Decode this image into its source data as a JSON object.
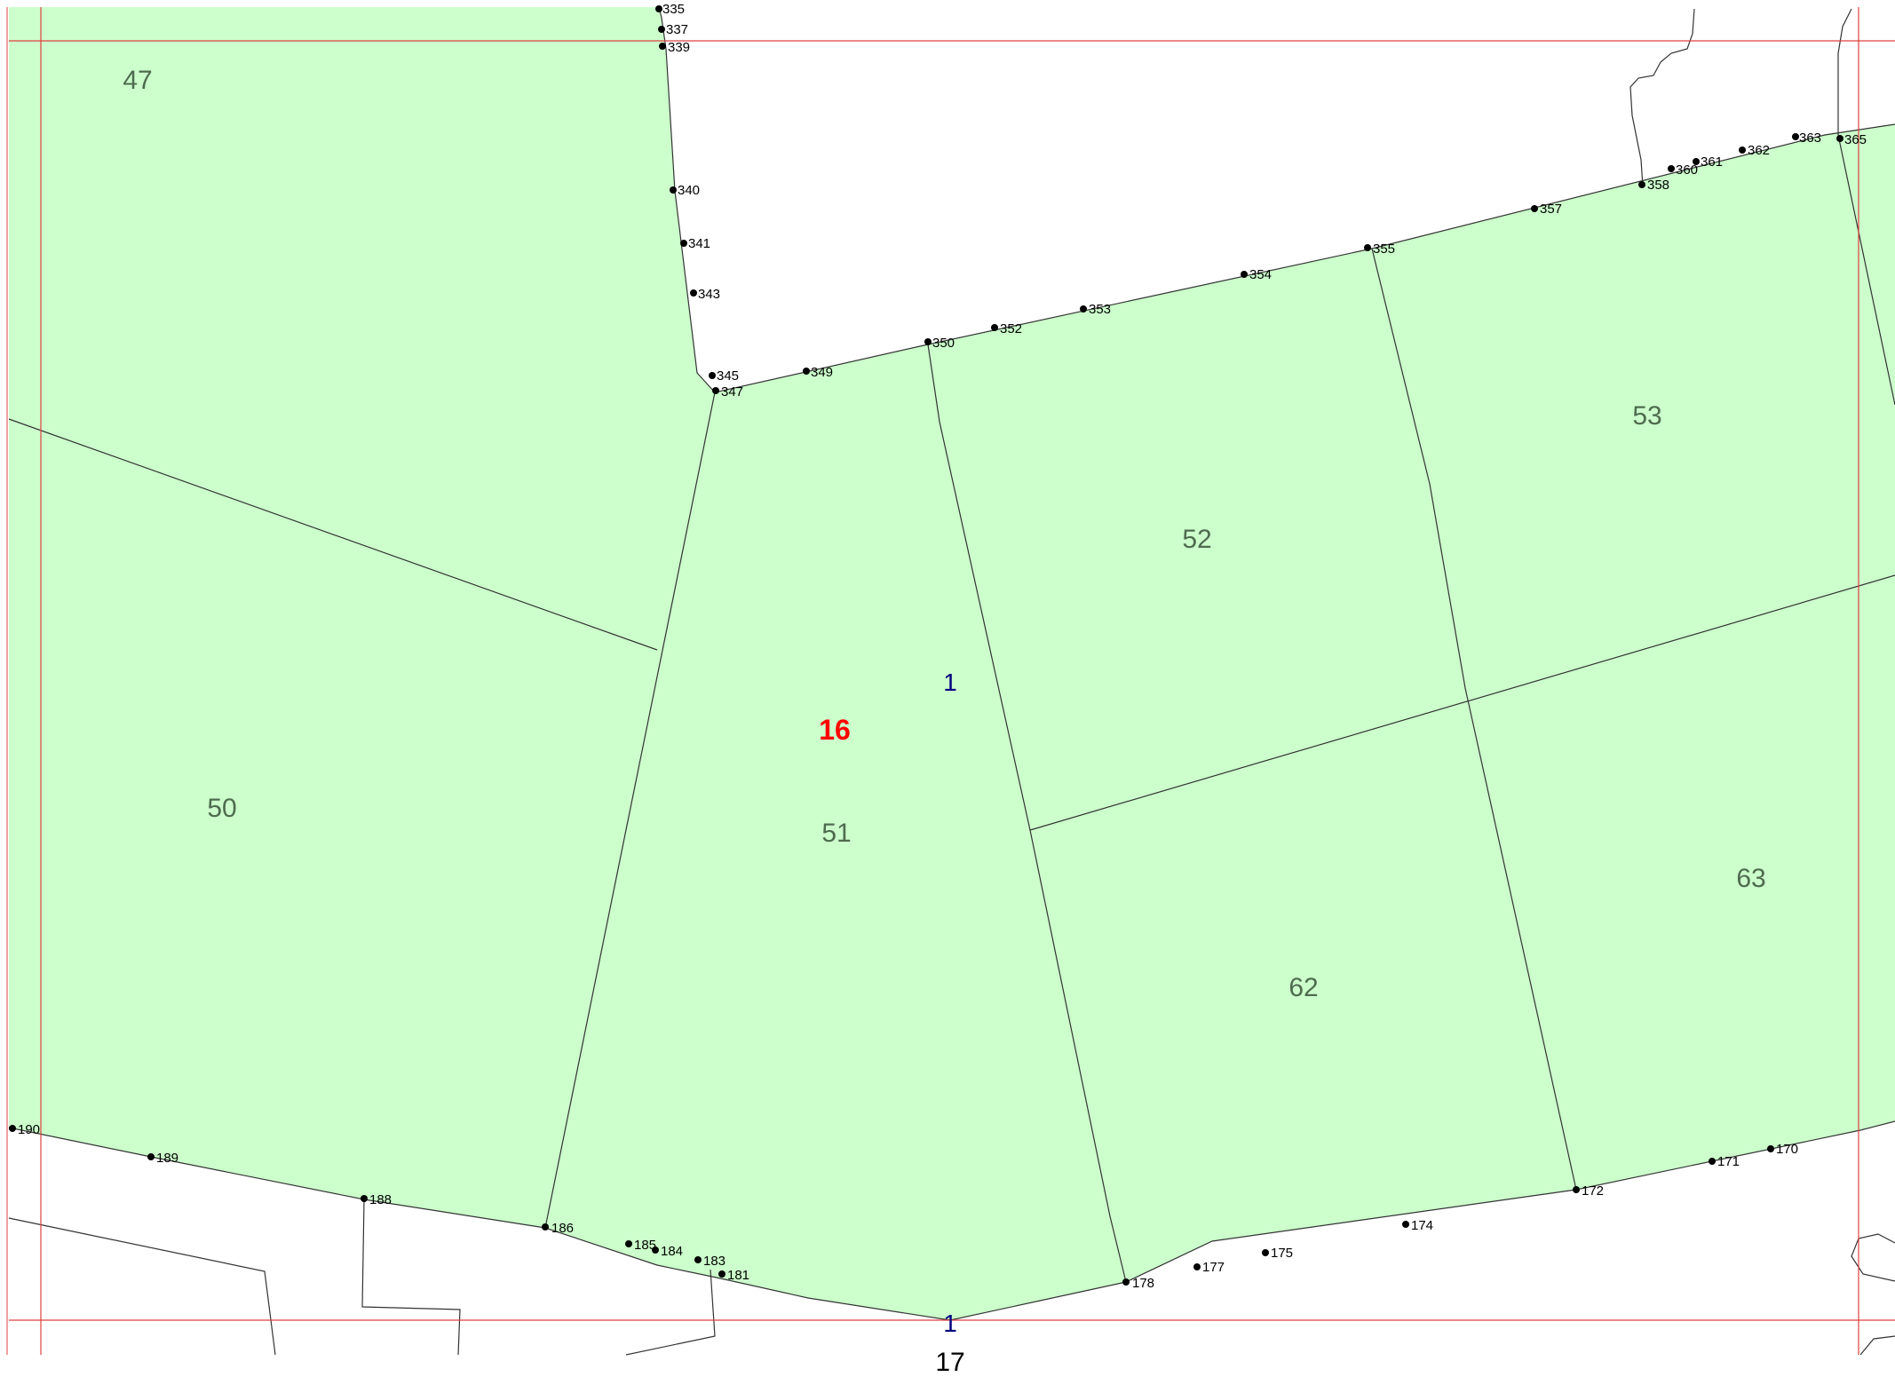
{
  "map": {
    "colors": {
      "parcel_fill": "#ccffcc",
      "grid": "#e04040",
      "block_label": "#ff0000",
      "sheet_label": "#000080",
      "parcel_label": "#4f6b4f"
    },
    "block_number": "16",
    "sheet_markers": [
      "1",
      "1"
    ],
    "adjacent_block": "17",
    "parcels": [
      "47",
      "50",
      "51",
      "52",
      "53",
      "62",
      "63"
    ],
    "points": [
      "335",
      "337",
      "339",
      "340",
      "341",
      "343",
      "345",
      "347",
      "349",
      "350",
      "352",
      "353",
      "354",
      "355",
      "357",
      "358",
      "360",
      "361",
      "362",
      "363",
      "365",
      "190",
      "189",
      "188",
      "186",
      "185",
      "184",
      "183",
      "181",
      "178",
      "177",
      "175",
      "174",
      "172",
      "171",
      "170"
    ]
  }
}
